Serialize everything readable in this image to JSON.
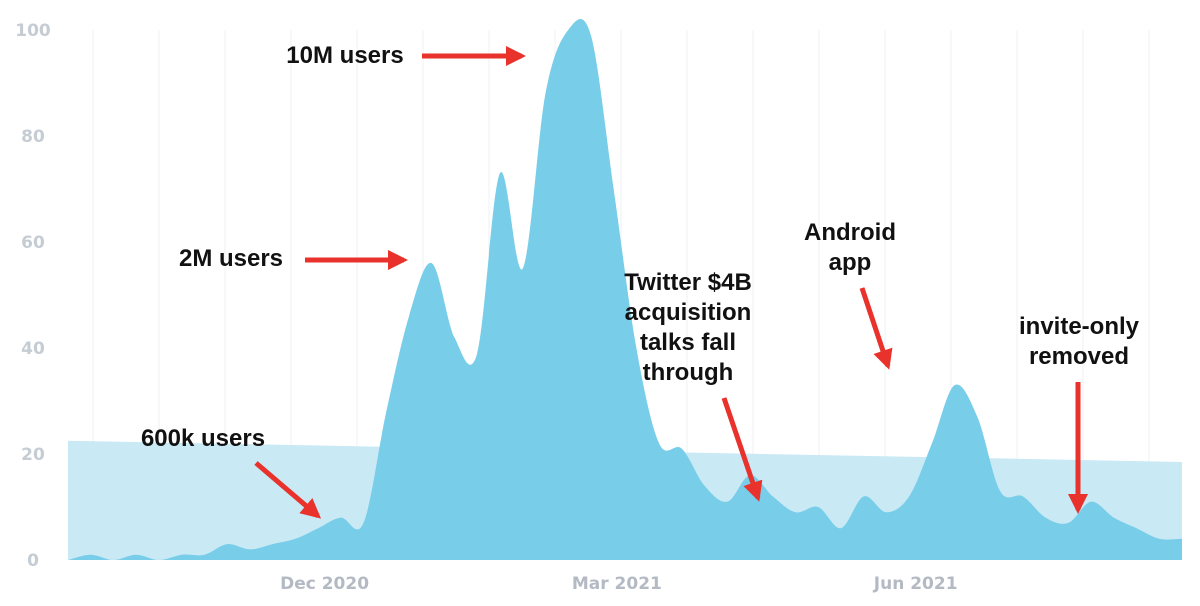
{
  "chart_data": {
    "type": "area",
    "title": "",
    "xlabel": "",
    "ylabel": "",
    "ylim": [
      0,
      100
    ],
    "y_ticks": [
      "0",
      "20",
      "40",
      "60",
      "80",
      "100"
    ],
    "x_ticks": [
      {
        "label": "Dec 2020",
        "date": "2020-12-01"
      },
      {
        "label": "Mar 2021",
        "date": "2021-03-01"
      },
      {
        "label": "Jun 2021",
        "date": "2021-06-01"
      }
    ],
    "grid": true,
    "colors": {
      "series": "#78cde9",
      "trend": "#c9e9f5",
      "arrow": "#e8322b",
      "tick": "#c5ccd4"
    },
    "series": [
      {
        "dates": [
          "2020-09-13",
          "2020-09-20",
          "2020-09-27",
          "2020-10-04",
          "2020-10-11",
          "2020-10-18",
          "2020-10-25",
          "2020-11-01",
          "2020-11-08",
          "2020-11-15",
          "2020-11-22",
          "2020-11-29",
          "2020-12-06",
          "2020-12-13",
          "2020-12-20",
          "2020-12-27",
          "2021-01-03",
          "2021-01-10",
          "2021-01-17",
          "2021-01-24",
          "2021-01-31",
          "2021-02-07",
          "2021-02-14",
          "2021-02-21",
          "2021-02-28",
          "2021-03-07",
          "2021-03-14",
          "2021-03-21",
          "2021-03-28",
          "2021-04-04",
          "2021-04-11",
          "2021-04-18",
          "2021-04-25",
          "2021-05-02",
          "2021-05-09",
          "2021-05-16",
          "2021-05-23",
          "2021-05-30",
          "2021-06-06",
          "2021-06-13",
          "2021-06-20",
          "2021-06-27",
          "2021-07-04",
          "2021-07-11",
          "2021-07-18",
          "2021-07-25",
          "2021-08-01",
          "2021-08-08",
          "2021-08-15",
          "2021-08-22"
        ],
        "values": [
          0,
          1,
          0,
          1,
          0,
          1,
          1,
          3,
          2,
          3,
          4,
          6,
          8,
          7,
          28,
          46,
          56,
          42,
          39,
          73,
          55,
          88,
          100,
          99,
          70,
          40,
          22,
          21,
          14,
          11,
          16,
          12,
          9,
          10,
          6,
          12,
          9,
          12,
          22,
          33,
          27,
          13,
          12,
          8,
          7,
          11,
          8,
          6,
          4,
          4
        ]
      }
    ],
    "trend": {
      "start": {
        "date": "2020-09-13",
        "value": 22.5
      },
      "end": {
        "date": "2021-08-22",
        "value": 18.5
      }
    },
    "annotations": [
      {
        "lines": [
          "10M users"
        ]
      },
      {
        "lines": [
          "2M users"
        ]
      },
      {
        "lines": [
          "600k users"
        ]
      },
      {
        "lines": [
          "Twitter $4B",
          "acquisition",
          "talks fall",
          "through"
        ]
      },
      {
        "lines": [
          "Android",
          "app"
        ]
      },
      {
        "lines": [
          "invite-only",
          "removed"
        ]
      }
    ]
  }
}
